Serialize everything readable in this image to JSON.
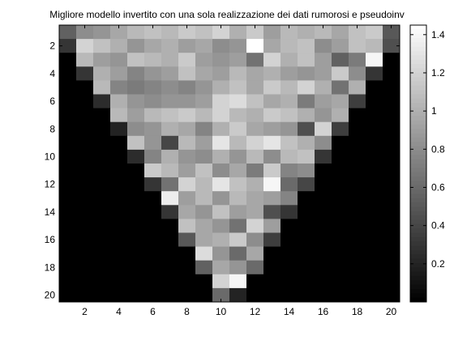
{
  "chart_data": {
    "type": "heatmap",
    "title": "Migliore modello invertito con una sola realizzazione dei dati rumorosi e pseudoinv",
    "xlabel": "",
    "ylabel": "",
    "rows": 20,
    "cols": 20,
    "xticks": [
      2,
      4,
      6,
      8,
      10,
      12,
      14,
      16,
      18,
      20
    ],
    "yticks": [
      2,
      4,
      6,
      8,
      10,
      12,
      14,
      16,
      18,
      20
    ],
    "colormap": "gray",
    "clim": [
      0,
      1.45
    ],
    "colorbar_ticks": [
      0.2,
      0.4,
      0.6,
      0.8,
      1,
      1.2,
      1.4
    ],
    "values": [
      [
        0.55,
        0.8,
        0.85,
        0.95,
        1.05,
        1.1,
        1.05,
        1.15,
        1.1,
        1.2,
        1.0,
        1.15,
        0.9,
        1.05,
        1.0,
        1.05,
        0.95,
        1.1,
        1.15,
        0.5
      ],
      [
        0.3,
        1.2,
        1.1,
        1.0,
        0.85,
        0.95,
        1.0,
        0.9,
        0.95,
        0.8,
        0.85,
        1.45,
        0.95,
        1.05,
        1.1,
        0.8,
        0.9,
        1.1,
        1.05,
        0.45
      ],
      [
        0.0,
        1.05,
        0.9,
        0.85,
        1.1,
        1.05,
        1.0,
        1.15,
        0.9,
        0.85,
        0.9,
        0.65,
        1.2,
        1.0,
        1.1,
        0.9,
        0.55,
        0.7,
        1.4,
        0.0
      ],
      [
        0.0,
        0.3,
        1.0,
        0.9,
        0.75,
        0.85,
        0.9,
        1.1,
        0.95,
        0.9,
        1.05,
        0.95,
        1.0,
        0.9,
        0.85,
        0.9,
        1.15,
        0.8,
        0.3,
        0.0
      ],
      [
        0.0,
        0.0,
        1.05,
        0.75,
        0.7,
        0.75,
        0.8,
        0.75,
        0.85,
        1.0,
        1.1,
        0.95,
        1.15,
        1.05,
        1.2,
        1.0,
        0.65,
        1.0,
        0.0,
        0.0
      ],
      [
        0.0,
        0.0,
        0.25,
        1.0,
        0.85,
        0.8,
        0.85,
        0.85,
        0.9,
        1.2,
        1.25,
        1.1,
        0.95,
        1.0,
        0.7,
        0.9,
        0.95,
        0.35,
        0.0,
        0.0
      ],
      [
        0.0,
        0.0,
        0.0,
        1.05,
        0.9,
        1.05,
        1.1,
        1.15,
        1.05,
        1.2,
        1.05,
        1.0,
        1.15,
        1.1,
        1.0,
        0.85,
        1.0,
        0.0,
        0.0,
        0.0
      ],
      [
        0.0,
        0.0,
        0.0,
        0.2,
        0.8,
        0.85,
        1.0,
        0.95,
        0.75,
        1.0,
        1.15,
        0.95,
        0.9,
        0.85,
        0.45,
        1.2,
        0.35,
        0.0,
        0.0,
        0.0
      ],
      [
        0.0,
        0.0,
        0.0,
        0.0,
        1.1,
        0.85,
        0.4,
        1.05,
        0.9,
        1.3,
        1.05,
        1.2,
        1.3,
        1.1,
        1.0,
        0.8,
        0.0,
        0.0,
        0.0,
        0.0
      ],
      [
        0.0,
        0.0,
        0.0,
        0.0,
        0.25,
        0.75,
        1.0,
        0.85,
        0.8,
        1.0,
        0.85,
        1.05,
        0.8,
        1.05,
        1.1,
        0.3,
        0.0,
        0.0,
        0.0,
        0.0
      ],
      [
        0.0,
        0.0,
        0.0,
        0.0,
        0.0,
        1.15,
        1.05,
        0.9,
        1.1,
        0.8,
        0.95,
        0.7,
        1.15,
        0.75,
        0.8,
        0.0,
        0.0,
        0.0,
        0.0,
        0.0
      ],
      [
        0.0,
        0.0,
        0.0,
        0.0,
        0.0,
        0.3,
        0.65,
        1.2,
        1.05,
        1.3,
        1.1,
        1.0,
        1.4,
        0.6,
        0.4,
        0.0,
        0.0,
        0.0,
        0.0,
        0.0
      ],
      [
        0.0,
        0.0,
        0.0,
        0.0,
        0.0,
        0.0,
        1.35,
        0.9,
        1.05,
        0.85,
        1.05,
        0.95,
        0.9,
        0.75,
        0.0,
        0.0,
        0.0,
        0.0,
        0.0,
        0.0
      ],
      [
        0.0,
        0.0,
        0.0,
        0.0,
        0.0,
        0.0,
        0.3,
        0.95,
        0.85,
        1.1,
        0.9,
        0.95,
        0.45,
        0.3,
        0.0,
        0.0,
        0.0,
        0.0,
        0.0,
        0.0
      ],
      [
        0.0,
        0.0,
        0.0,
        0.0,
        0.0,
        0.0,
        0.0,
        1.1,
        0.95,
        0.85,
        0.65,
        1.2,
        0.9,
        0.0,
        0.0,
        0.0,
        0.0,
        0.0,
        0.0,
        0.0
      ],
      [
        0.0,
        0.0,
        0.0,
        0.0,
        0.0,
        0.0,
        0.0,
        0.5,
        0.95,
        1.0,
        1.15,
        0.8,
        0.35,
        0.0,
        0.0,
        0.0,
        0.0,
        0.0,
        0.0,
        0.0
      ],
      [
        0.0,
        0.0,
        0.0,
        0.0,
        0.0,
        0.0,
        0.0,
        0.0,
        1.25,
        0.85,
        0.6,
        0.95,
        0.0,
        0.0,
        0.0,
        0.0,
        0.0,
        0.0,
        0.0,
        0.0
      ],
      [
        0.0,
        0.0,
        0.0,
        0.0,
        0.0,
        0.0,
        0.0,
        0.0,
        0.55,
        0.95,
        0.85,
        0.6,
        0.0,
        0.0,
        0.0,
        0.0,
        0.0,
        0.0,
        0.0,
        0.0
      ],
      [
        0.0,
        0.0,
        0.0,
        0.0,
        0.0,
        0.0,
        0.0,
        0.0,
        0.0,
        1.2,
        1.4,
        0.0,
        0.0,
        0.0,
        0.0,
        0.0,
        0.0,
        0.0,
        0.0,
        0.0
      ],
      [
        0.0,
        0.0,
        0.0,
        0.0,
        0.0,
        0.0,
        0.0,
        0.0,
        0.0,
        0.6,
        0.2,
        0.0,
        0.0,
        0.0,
        0.0,
        0.0,
        0.0,
        0.0,
        0.0,
        0.0
      ]
    ]
  }
}
